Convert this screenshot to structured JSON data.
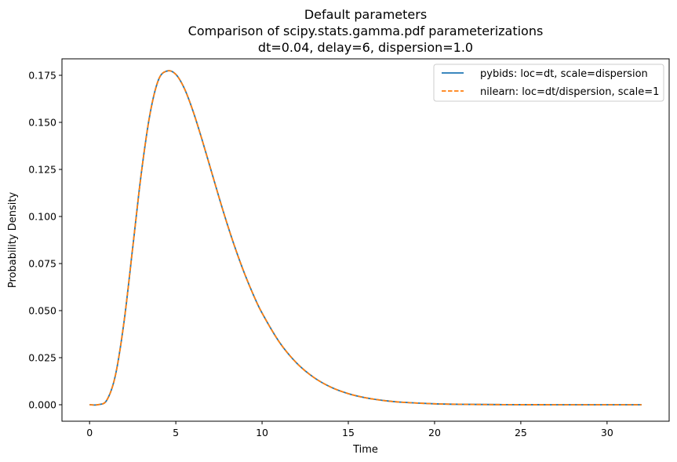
{
  "chart_data": {
    "type": "line",
    "title": "Default parameters",
    "subtitle_lines": [
      "Comparison of scipy.stats.gamma.pdf parameterizations",
      "dt=0.04, delay=6, dispersion=1.0"
    ],
    "xlabel": "Time",
    "ylabel": "Probability Density",
    "xlim": [
      -1.6,
      33.6
    ],
    "ylim": [
      -0.00875,
      0.18375
    ],
    "x_ticks": [
      0,
      5,
      10,
      15,
      20,
      25,
      30
    ],
    "x_tick_labels": [
      "0",
      "5",
      "10",
      "15",
      "20",
      "25",
      "30"
    ],
    "y_ticks": [
      0.0,
      0.025,
      0.05,
      0.075,
      0.1,
      0.125,
      0.15,
      0.175
    ],
    "y_tick_labels": [
      "0.000",
      "0.025",
      "0.050",
      "0.075",
      "0.100",
      "0.125",
      "0.150",
      "0.175"
    ],
    "grid": false,
    "legend_placement": "top-right",
    "x": [
      0,
      0.5,
      1,
      1.5,
      2,
      2.5,
      3,
      3.5,
      4,
      4.5,
      5,
      5.5,
      6,
      6.5,
      7,
      7.5,
      8,
      8.5,
      9,
      9.5,
      10,
      11,
      12,
      13,
      14,
      15,
      16,
      17,
      18,
      20,
      22,
      24,
      26,
      28,
      30,
      32
    ],
    "series": [
      {
        "name": "pybids: loc=dt, scale=dispersion",
        "color": "#1f77b4",
        "dash": "solid",
        "values": [
          0,
          2.71e-05,
          0.00245,
          0.0157,
          0.0442,
          0.0834,
          0.123,
          0.1543,
          0.1727,
          0.1773,
          0.1755,
          0.1679,
          0.1559,
          0.1414,
          0.1259,
          0.1103,
          0.0954,
          0.0817,
          0.0693,
          0.0583,
          0.0487,
          0.0333,
          0.0222,
          0.0145,
          0.0093,
          0.0059,
          0.0037,
          0.0023,
          0.0014,
          0.0005,
          0.00018,
          6e-05,
          2e-05,
          1e-05,
          0,
          0
        ]
      },
      {
        "name": "nilearn: loc=dt/dispersion, scale=1",
        "color": "#ff7f0e",
        "dash": "dashed",
        "values": [
          0,
          2.71e-05,
          0.00245,
          0.0157,
          0.0442,
          0.0834,
          0.123,
          0.1543,
          0.1727,
          0.1773,
          0.1755,
          0.1679,
          0.1559,
          0.1414,
          0.1259,
          0.1103,
          0.0954,
          0.0817,
          0.0693,
          0.0583,
          0.0487,
          0.0333,
          0.0222,
          0.0145,
          0.0093,
          0.0059,
          0.0037,
          0.0023,
          0.0014,
          0.0005,
          0.00018,
          6e-05,
          2e-05,
          1e-05,
          0,
          0
        ]
      }
    ]
  }
}
